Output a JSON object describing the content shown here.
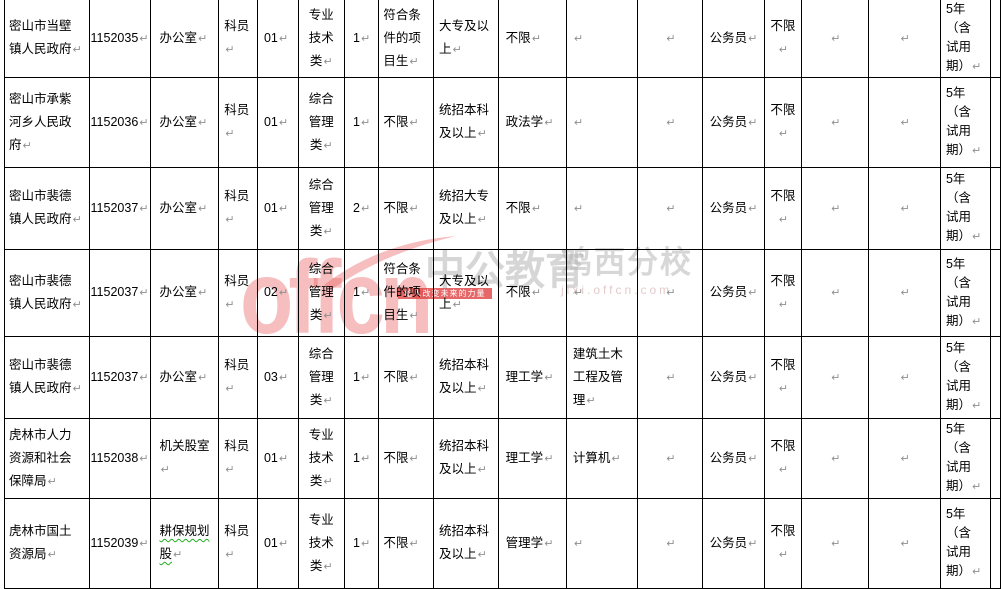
{
  "watermark": {
    "logo_text": "offcn",
    "brand": "中公教育",
    "ribbon_slogan": "给人改变未来的力量",
    "branch": "鸡西分校",
    "url": "jixi.offcn.com"
  },
  "marks": {
    "paragraph_mark": "↵"
  },
  "colors": {
    "table_border": "#000000",
    "table_text": "#000000",
    "paragraph_mark_color": "#8f8f8f",
    "spellcheck_underline": "#1faf1f",
    "watermark_pink": "#e96464",
    "watermark_gray": "#a8a8a8",
    "ribbon_red": "#de3c3c"
  },
  "table": {
    "rows": [
      {
        "cells": [
          "密山市当壁\n镇人民政府",
          "1152035",
          "办公室",
          "科员",
          "01",
          "专业\n技术\n类",
          "1",
          "符合条\n件的项\n目生",
          "大专及以\n上",
          "不限",
          "",
          "",
          "公务员",
          "不限",
          "",
          "",
          "5年\n（含\n试用\n期）"
        ]
      },
      {
        "cells": [
          "密山市承紫\n河乡人民政\n府",
          "1152036",
          "办公室",
          "科员",
          "01",
          "综合\n管理\n类",
          "1",
          "不限",
          "统招本科\n及以上",
          "政法学",
          "",
          "",
          "公务员",
          "不限",
          "",
          "",
          "5年\n（含\n试用\n期）"
        ]
      },
      {
        "cells": [
          "密山市裴德\n镇人民政府",
          "1152037",
          "办公室",
          "科员",
          "01",
          "综合\n管理\n类",
          "2",
          "不限",
          "统招大专\n及以上",
          "不限",
          "",
          "",
          "公务员",
          "不限",
          "",
          "",
          "5年\n（含\n试用\n期）"
        ]
      },
      {
        "cells": [
          "密山市裴德\n镇人民政府",
          "1152037",
          "办公室",
          "科员",
          "02",
          "综合\n管理\n类",
          "1",
          "符合条\n件的项\n目生",
          "大专及以\n上",
          "不限",
          "",
          "",
          "公务员",
          "不限",
          "",
          "",
          "5年\n（含\n试用\n期）"
        ]
      },
      {
        "cells": [
          "密山市裴德\n镇人民政府",
          "1152037",
          "办公室",
          "科员",
          "03",
          "综合\n管理\n类",
          "1",
          "不限",
          "统招本科\n及以上",
          "理工学",
          "建筑土木\n工程及管\n理",
          "",
          "公务员",
          "不限",
          "",
          "",
          "5年\n（含\n试用\n期）"
        ]
      },
      {
        "cells": [
          "虎林市人力\n资源和社会\n保障局",
          "1152038",
          "机关股室",
          "科员",
          "01",
          "专业\n技术\n类",
          "1",
          "不限",
          "统招本科\n及以上",
          "理工学",
          "计算机",
          "",
          "公务员",
          "不限",
          "",
          "",
          "5年\n（含\n试用\n期）"
        ]
      },
      {
        "cells": [
          "虎林市国土\n资源局",
          "1152039",
          "耕保规划\n股",
          "科员",
          "01",
          "专业\n技术\n类",
          "1",
          "不限",
          "统招本科\n及以上",
          "管理学",
          "",
          "",
          "公务员",
          "不限",
          "",
          "",
          "5年\n（含\n试用\n期）"
        ]
      }
    ],
    "spellcheck_cells": [
      [
        6,
        2
      ]
    ]
  }
}
